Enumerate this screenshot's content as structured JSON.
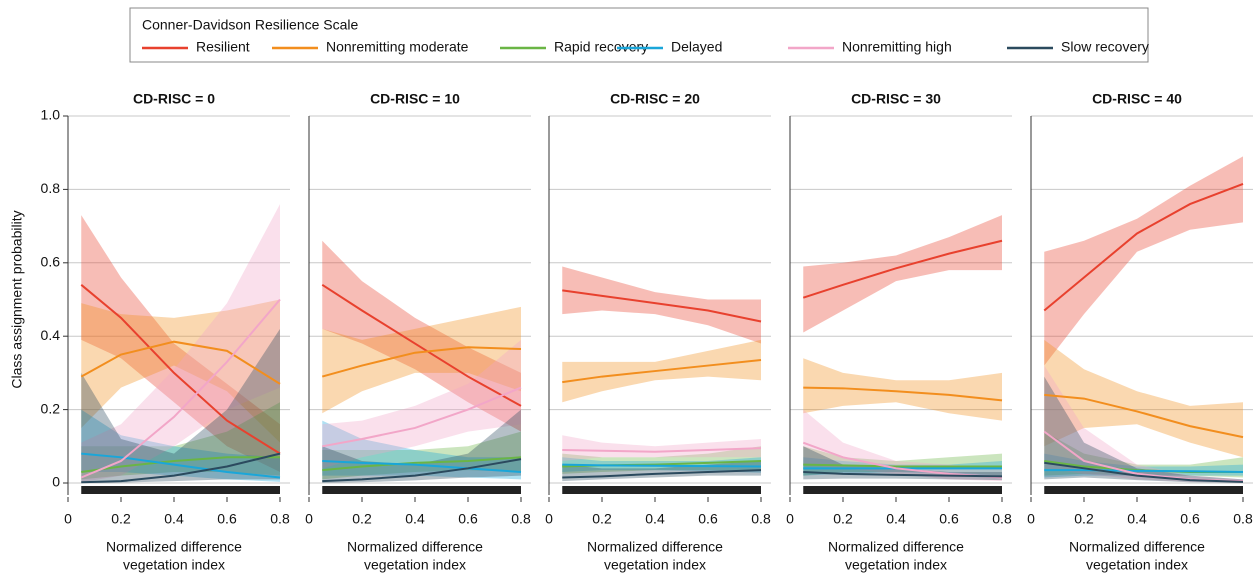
{
  "legend": {
    "title": "Conner-Davidson Resilience Scale",
    "entries": [
      {
        "name": "Resilient",
        "color": "#e8412e"
      },
      {
        "name": "Nonremitting moderate",
        "color": "#f28e1e"
      },
      {
        "name": "Rapid recovery",
        "color": "#6ab545"
      },
      {
        "name": "Delayed",
        "color": "#1aa6d9"
      },
      {
        "name": "Nonremitting high",
        "color": "#f2a6c8"
      },
      {
        "name": "Slow recovery",
        "color": "#2b4a5e"
      }
    ]
  },
  "chart_data": [
    {
      "type": "line",
      "title": "CD-RISC = 0",
      "ylabel": "Class assignment probability",
      "xlabel": [
        "Normalized difference",
        "vegetation index"
      ],
      "x": [
        0.05,
        0.2,
        0.4,
        0.6,
        0.8
      ],
      "xlim": [
        0,
        0.8
      ],
      "xticks": [
        0,
        0.2,
        0.4,
        0.6,
        0.8
      ],
      "ylim": [
        0,
        1
      ],
      "yticks": [
        0,
        0.2,
        0.4,
        0.6,
        0.8,
        {
          "value": 1,
          "label": "1.0"
        }
      ],
      "grid": true,
      "series": [
        {
          "values": [
            0.54,
            0.45,
            0.3,
            0.17,
            0.08
          ],
          "lower": [
            0.39,
            0.34,
            0.22,
            0.1,
            0.03
          ],
          "upper": [
            0.73,
            0.56,
            0.38,
            0.27,
            0.16
          ]
        },
        {
          "values": [
            0.29,
            0.35,
            0.385,
            0.36,
            0.27
          ],
          "lower": [
            0.15,
            0.26,
            0.32,
            0.25,
            0.11
          ],
          "upper": [
            0.49,
            0.46,
            0.45,
            0.47,
            0.5
          ]
        },
        {
          "values": [
            0.03,
            0.045,
            0.06,
            0.07,
            0.07
          ],
          "lower": [
            0.01,
            0.02,
            0.03,
            0.03,
            0.02
          ],
          "upper": [
            0.1,
            0.1,
            0.1,
            0.14,
            0.22
          ]
        },
        {
          "values": [
            0.08,
            0.07,
            0.05,
            0.03,
            0.015
          ],
          "lower": [
            0.03,
            0.03,
            0.02,
            0.01,
            0.003
          ],
          "upper": [
            0.2,
            0.13,
            0.1,
            0.08,
            0.07
          ]
        },
        {
          "values": [
            0.015,
            0.06,
            0.18,
            0.33,
            0.5
          ],
          "lower": [
            0.002,
            0.02,
            0.1,
            0.2,
            0.26
          ],
          "upper": [
            0.11,
            0.16,
            0.31,
            0.49,
            0.76
          ]
        },
        {
          "values": [
            0.002,
            0.005,
            0.02,
            0.045,
            0.08
          ],
          "lower": [
            0,
            0.001,
            0.005,
            0.01,
            0.01
          ],
          "upper": [
            0.3,
            0.12,
            0.08,
            0.2,
            0.42
          ]
        }
      ]
    },
    {
      "type": "line",
      "title": "CD-RISC = 10",
      "xlabel": [
        "Normalized difference",
        "vegetation index"
      ],
      "x": [
        0.05,
        0.2,
        0.4,
        0.6,
        0.8
      ],
      "xlim": [
        0,
        0.8
      ],
      "xticks": [
        0,
        0.2,
        0.4,
        0.6,
        0.8
      ],
      "ylim": [
        0,
        1
      ],
      "grid": true,
      "series": [
        {
          "values": [
            0.54,
            0.47,
            0.38,
            0.29,
            0.21
          ],
          "lower": [
            0.42,
            0.38,
            0.31,
            0.22,
            0.14
          ],
          "upper": [
            0.66,
            0.55,
            0.45,
            0.37,
            0.3
          ]
        },
        {
          "values": [
            0.29,
            0.32,
            0.355,
            0.37,
            0.365
          ],
          "lower": [
            0.19,
            0.25,
            0.3,
            0.3,
            0.25
          ],
          "upper": [
            0.42,
            0.39,
            0.42,
            0.45,
            0.48
          ]
        },
        {
          "values": [
            0.035,
            0.045,
            0.055,
            0.06,
            0.07
          ],
          "lower": [
            0.01,
            0.02,
            0.03,
            0.035,
            0.03
          ],
          "upper": [
            0.09,
            0.09,
            0.09,
            0.1,
            0.14
          ]
        },
        {
          "values": [
            0.06,
            0.055,
            0.05,
            0.04,
            0.03
          ],
          "lower": [
            0.02,
            0.02,
            0.02,
            0.015,
            0.01
          ],
          "upper": [
            0.17,
            0.12,
            0.09,
            0.07,
            0.07
          ]
        },
        {
          "values": [
            0.1,
            0.12,
            0.15,
            0.2,
            0.26
          ],
          "lower": [
            0.04,
            0.07,
            0.1,
            0.14,
            0.16
          ],
          "upper": [
            0.16,
            0.17,
            0.21,
            0.27,
            0.39
          ]
        },
        {
          "values": [
            0.005,
            0.01,
            0.02,
            0.04,
            0.065
          ],
          "lower": [
            0,
            0.002,
            0.007,
            0.015,
            0.02
          ],
          "upper": [
            0.1,
            0.06,
            0.05,
            0.08,
            0.2
          ]
        }
      ]
    },
    {
      "type": "line",
      "title": "CD-RISC = 20",
      "xlabel": [
        "Normalized difference",
        "vegetation index"
      ],
      "x": [
        0.05,
        0.2,
        0.4,
        0.6,
        0.8
      ],
      "xlim": [
        0,
        0.8
      ],
      "xticks": [
        0,
        0.2,
        0.4,
        0.6,
        0.8
      ],
      "ylim": [
        0,
        1
      ],
      "grid": true,
      "series": [
        {
          "values": [
            0.525,
            0.51,
            0.49,
            0.47,
            0.44
          ],
          "lower": [
            0.46,
            0.47,
            0.46,
            0.43,
            0.38
          ],
          "upper": [
            0.59,
            0.56,
            0.52,
            0.5,
            0.5
          ]
        },
        {
          "values": [
            0.275,
            0.29,
            0.305,
            0.32,
            0.335
          ],
          "lower": [
            0.22,
            0.25,
            0.28,
            0.29,
            0.28
          ],
          "upper": [
            0.33,
            0.33,
            0.33,
            0.36,
            0.39
          ]
        },
        {
          "values": [
            0.045,
            0.048,
            0.05,
            0.055,
            0.06
          ],
          "lower": [
            0.025,
            0.03,
            0.035,
            0.035,
            0.035
          ],
          "upper": [
            0.08,
            0.07,
            0.07,
            0.08,
            0.1
          ]
        },
        {
          "values": [
            0.05,
            0.048,
            0.047,
            0.046,
            0.045
          ],
          "lower": [
            0.03,
            0.035,
            0.035,
            0.032,
            0.028
          ],
          "upper": [
            0.07,
            0.06,
            0.06,
            0.06,
            0.07
          ]
        },
        {
          "values": [
            0.09,
            0.088,
            0.085,
            0.09,
            0.095
          ],
          "lower": [
            0.06,
            0.07,
            0.07,
            0.07,
            0.07
          ],
          "upper": [
            0.13,
            0.11,
            0.1,
            0.11,
            0.12
          ]
        },
        {
          "values": [
            0.015,
            0.018,
            0.025,
            0.03,
            0.035
          ],
          "lower": [
            0.005,
            0.01,
            0.015,
            0.02,
            0.02
          ],
          "upper": [
            0.05,
            0.04,
            0.04,
            0.05,
            0.06
          ]
        }
      ]
    },
    {
      "type": "line",
      "title": "CD-RISC = 30",
      "xlabel": [
        "Normalized difference",
        "vegetation index"
      ],
      "x": [
        0.05,
        0.2,
        0.4,
        0.6,
        0.8
      ],
      "xlim": [
        0,
        0.8
      ],
      "xticks": [
        0,
        0.2,
        0.4,
        0.6,
        0.8
      ],
      "ylim": [
        0,
        1
      ],
      "grid": true,
      "series": [
        {
          "values": [
            0.505,
            0.54,
            0.585,
            0.625,
            0.66
          ],
          "lower": [
            0.41,
            0.47,
            0.55,
            0.58,
            0.58
          ],
          "upper": [
            0.59,
            0.6,
            0.62,
            0.67,
            0.73
          ]
        },
        {
          "values": [
            0.26,
            0.258,
            0.25,
            0.24,
            0.225
          ],
          "lower": [
            0.19,
            0.21,
            0.22,
            0.19,
            0.17
          ],
          "upper": [
            0.34,
            0.3,
            0.28,
            0.28,
            0.3
          ]
        },
        {
          "values": [
            0.05,
            0.048,
            0.045,
            0.045,
            0.045
          ],
          "lower": [
            0.02,
            0.03,
            0.03,
            0.03,
            0.02
          ],
          "upper": [
            0.1,
            0.07,
            0.06,
            0.07,
            0.08
          ]
        },
        {
          "values": [
            0.04,
            0.04,
            0.04,
            0.04,
            0.04
          ],
          "lower": [
            0.02,
            0.025,
            0.03,
            0.025,
            0.02
          ],
          "upper": [
            0.07,
            0.06,
            0.05,
            0.05,
            0.06
          ]
        },
        {
          "values": [
            0.11,
            0.07,
            0.04,
            0.025,
            0.015
          ],
          "lower": [
            0.05,
            0.04,
            0.025,
            0.01,
            0.005
          ],
          "upper": [
            0.2,
            0.11,
            0.06,
            0.05,
            0.04
          ]
        },
        {
          "values": [
            0.03,
            0.025,
            0.022,
            0.02,
            0.018
          ],
          "lower": [
            0.01,
            0.012,
            0.012,
            0.01,
            0.008
          ],
          "upper": [
            0.1,
            0.05,
            0.04,
            0.03,
            0.03
          ]
        }
      ]
    },
    {
      "type": "line",
      "title": "CD-RISC = 40",
      "xlabel": [
        "Normalized difference",
        "vegetation index"
      ],
      "x": [
        0.05,
        0.2,
        0.4,
        0.6,
        0.8
      ],
      "xlim": [
        0,
        0.8
      ],
      "xticks": [
        0,
        0.2,
        0.4,
        0.6,
        0.8
      ],
      "ylim": [
        0,
        1
      ],
      "grid": true,
      "series": [
        {
          "values": [
            0.47,
            0.56,
            0.68,
            0.76,
            0.815
          ],
          "lower": [
            0.32,
            0.46,
            0.63,
            0.69,
            0.71
          ],
          "upper": [
            0.63,
            0.66,
            0.72,
            0.81,
            0.89
          ]
        },
        {
          "values": [
            0.24,
            0.23,
            0.195,
            0.155,
            0.125
          ],
          "lower": [
            0.1,
            0.15,
            0.16,
            0.11,
            0.07
          ],
          "upper": [
            0.39,
            0.31,
            0.25,
            0.21,
            0.22
          ]
        },
        {
          "values": [
            0.06,
            0.045,
            0.035,
            0.03,
            0.03
          ],
          "lower": [
            0.02,
            0.025,
            0.02,
            0.02,
            0.015
          ],
          "upper": [
            0.14,
            0.08,
            0.05,
            0.05,
            0.07
          ]
        },
        {
          "values": [
            0.035,
            0.035,
            0.033,
            0.032,
            0.03
          ],
          "lower": [
            0.015,
            0.02,
            0.02,
            0.02,
            0.02
          ],
          "upper": [
            0.08,
            0.06,
            0.045,
            0.045,
            0.05
          ]
        },
        {
          "values": [
            0.14,
            0.06,
            0.025,
            0.01,
            0.005
          ],
          "lower": [
            0.04,
            0.025,
            0.01,
            0.003,
            0.001
          ],
          "upper": [
            0.32,
            0.15,
            0.05,
            0.02,
            0.01
          ]
        },
        {
          "values": [
            0.055,
            0.04,
            0.02,
            0.008,
            0.003
          ],
          "lower": [
            0.01,
            0.015,
            0.008,
            0.002,
            0.0005
          ],
          "upper": [
            0.29,
            0.11,
            0.04,
            0.02,
            0.01
          ]
        }
      ]
    }
  ]
}
